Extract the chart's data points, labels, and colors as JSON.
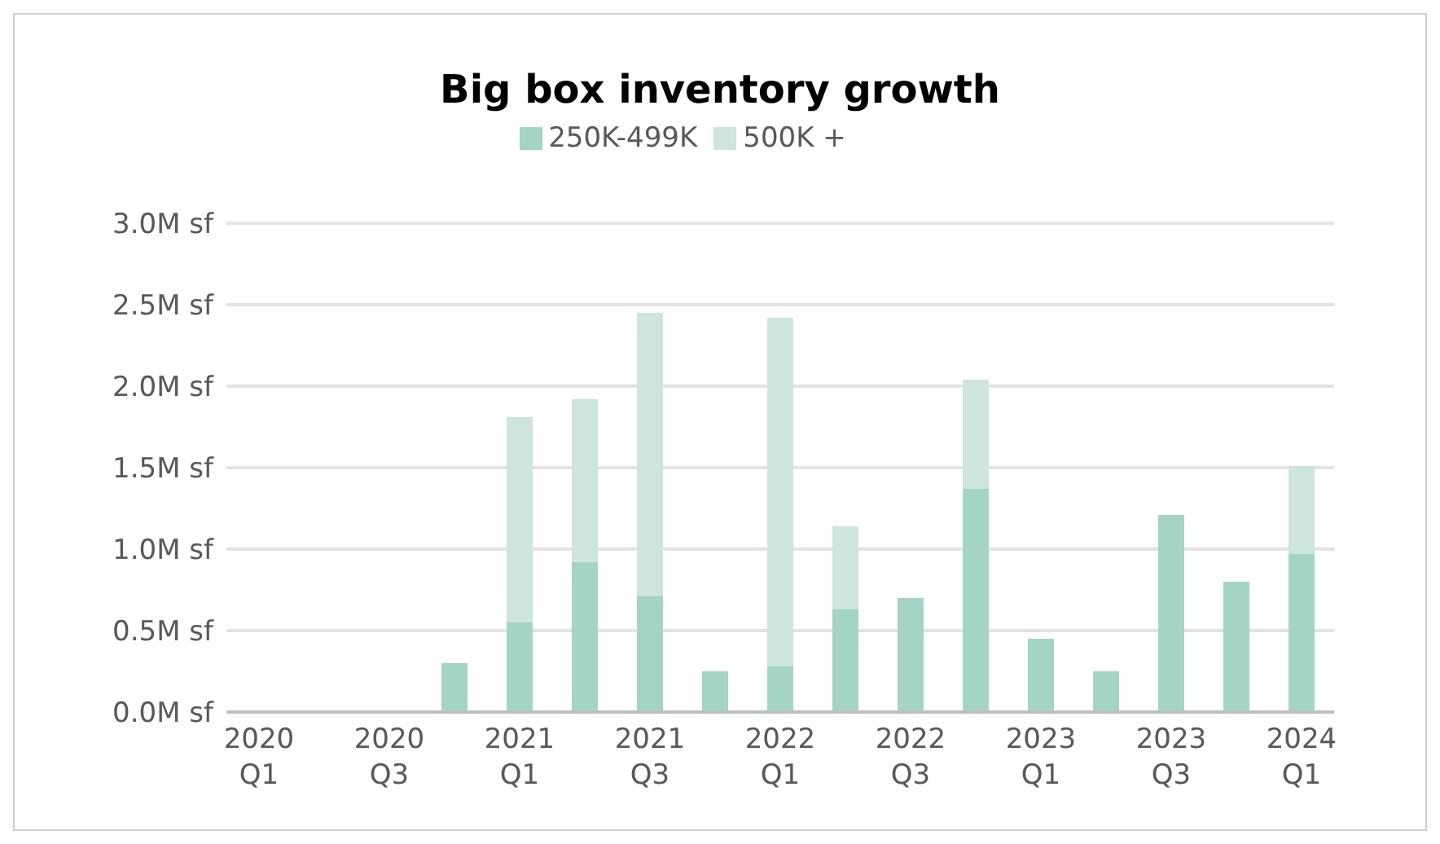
{
  "chart_data": {
    "type": "bar",
    "title": "Big box inventory growth",
    "stacked": true,
    "legend": "top",
    "grid": "y",
    "categories": [
      "2020\nQ1",
      null,
      "2020\nQ3",
      null,
      "2021\nQ1",
      null,
      "2021\nQ3",
      null,
      "2022\nQ1",
      null,
      "2022\nQ3",
      null,
      "2023\nQ1",
      null,
      "2023\nQ3",
      null,
      "2024\nQ1"
    ],
    "series": [
      {
        "name": "250K-499K",
        "color": "#a4d4c2",
        "values": [
          0,
          0,
          0,
          0.3,
          0.55,
          0.92,
          0.71,
          0.25,
          0.28,
          0.63,
          0.7,
          1.37,
          0.45,
          0.25,
          1.21,
          0.8,
          0.97
        ]
      },
      {
        "name": "500K +",
        "color": "#cde5dd",
        "values": [
          0,
          0,
          0,
          0,
          1.26,
          1.0,
          1.74,
          0,
          2.14,
          0.51,
          0,
          0.67,
          0,
          0,
          0,
          0,
          0.54
        ]
      }
    ],
    "ylim": [
      0,
      3
    ],
    "yticks": [
      {
        "value": 0,
        "label": "0.0M sf"
      },
      {
        "value": 0.5,
        "label": "0.5M sf"
      },
      {
        "value": 1,
        "label": "1.0M sf"
      },
      {
        "value": 1.5,
        "label": "1.5M sf"
      },
      {
        "value": 2,
        "label": "2.0M sf"
      },
      {
        "value": 2.5,
        "label": "2.5M sf"
      },
      {
        "value": 3,
        "label": "3.0M sf"
      }
    ]
  }
}
